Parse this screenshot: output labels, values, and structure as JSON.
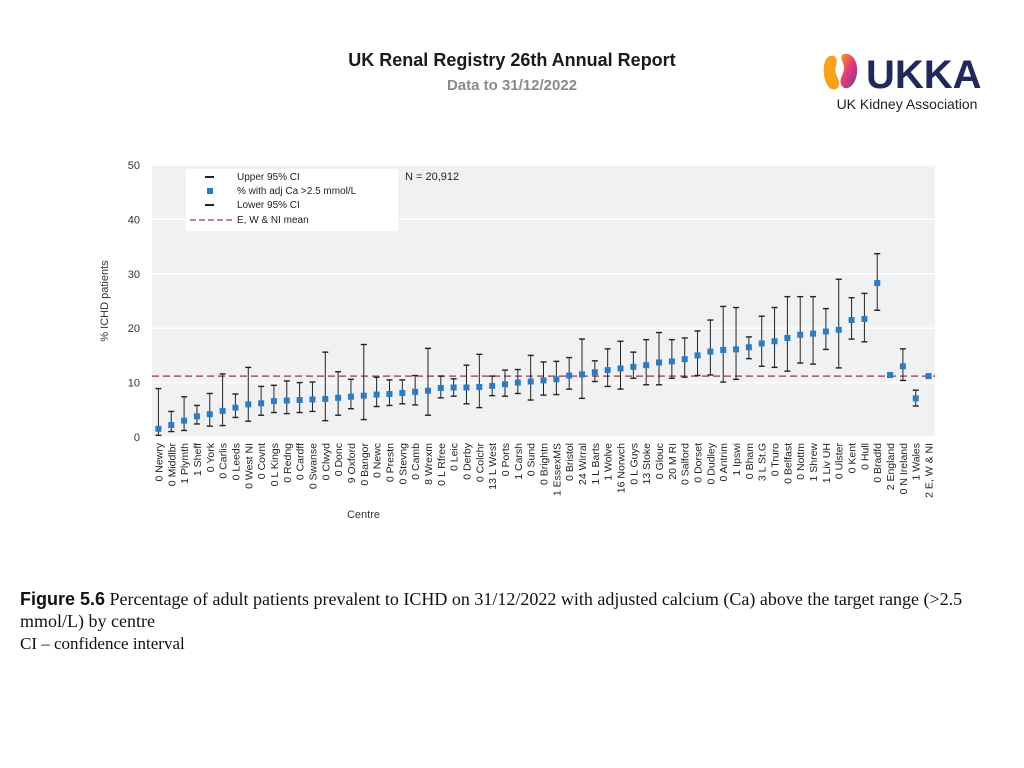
{
  "header": {
    "title": "UK Renal Registry 26th Annual Report",
    "subtitle": "Data to 31/12/2022"
  },
  "logo": {
    "wordmark": "UKKA",
    "tagline": "UK Kidney Association"
  },
  "colors": {
    "point": "#2f7bbf",
    "errorbar": "#222222",
    "mean_line": "#b0506a",
    "plot_bg": "#f0f1f3",
    "grid": "#ffffff"
  },
  "chart_data": {
    "type": "scatter",
    "title": "",
    "xlabel": "Centre",
    "ylabel": "% ICHD patients",
    "ylim": [
      0,
      50
    ],
    "yticks": [
      0,
      10,
      20,
      30,
      40,
      50
    ],
    "grid": true,
    "legend_position": "top-left",
    "annotation": "N = 20,912",
    "legend": [
      "Upper 95% CI",
      "% with adj Ca >2.5 mmol/L",
      "Lower 95% CI",
      "E, W & NI mean"
    ],
    "mean_value": 11.2,
    "categories": [
      "0 Newry",
      "0 Middlbr",
      "1 Plymth",
      "1 Sheff",
      "0 York",
      "0 Carlis",
      "0 Leeds",
      "0 West NI",
      "0 Covnt",
      "0 L Kings",
      "0 Redng",
      "0 Cardff",
      "0 Swanse",
      "0 Clwyd",
      "0 Donc",
      "9 Oxford",
      "0 Bangor",
      "0 Newc",
      "0 Prestn",
      "0 Stevng",
      "0 Camb",
      "8 Wrexm",
      "0 L Rfree",
      "0 Leic",
      "0 Derby",
      "0 Colchr",
      "13 L West",
      "0 Ports",
      "1 Carsh",
      "0 Sund",
      "0 Brightn",
      "1 EssexMS",
      "0 Bristol",
      "24 Wirral",
      "1 L Barts",
      "1 Wolve",
      "16 Norwch",
      "0 L Guys",
      "13 Stoke",
      "0 Glouc",
      "20 M RI",
      "0 Salford",
      "0 Dorset",
      "0 Dudley",
      "0 Antrim",
      "1 Ipswi",
      "0 Bham",
      "3 L St.G",
      "0 Truro",
      "0 Belfast",
      "0 Nottm",
      "1 Shrew",
      "1 Liv UH",
      "0 Ulster",
      "0 Kent",
      "0 Hull",
      "0 Bradfd",
      "2 England",
      "0 N Ireland",
      "1 Wales",
      "2 E, W & NI"
    ],
    "series": [
      {
        "name": "% with adj Ca >2.5 mmol/L",
        "values": [
          1.5,
          2.2,
          3.0,
          3.8,
          4.2,
          4.8,
          5.4,
          6.0,
          6.2,
          6.6,
          6.7,
          6.8,
          6.9,
          7.0,
          7.2,
          7.4,
          7.6,
          7.8,
          7.9,
          8.1,
          8.3,
          8.5,
          9.0,
          9.1,
          9.1,
          9.2,
          9.4,
          9.7,
          10.0,
          10.2,
          10.4,
          10.6,
          11.3,
          11.5,
          11.9,
          12.3,
          12.6,
          12.9,
          13.2,
          13.7,
          13.9,
          14.3,
          15.0,
          15.7,
          16.0,
          16.1,
          16.5,
          17.2,
          17.6,
          18.2,
          18.8,
          19.0,
          19.4,
          19.7,
          21.5,
          21.7,
          28.3,
          11.4,
          13.0,
          7.1,
          11.2
        ]
      },
      {
        "name": "Upper 95% CI",
        "values": [
          8.9,
          4.7,
          7.4,
          5.8,
          8.0,
          11.6,
          7.9,
          12.8,
          9.3,
          9.5,
          10.3,
          10.0,
          10.1,
          15.6,
          12.0,
          10.6,
          17.0,
          11.0,
          10.5,
          10.5,
          11.3,
          16.3,
          11.2,
          10.7,
          13.2,
          15.2,
          11.2,
          12.3,
          12.4,
          15.0,
          13.8,
          13.9,
          14.6,
          18.0,
          14.0,
          16.2,
          17.6,
          15.6,
          17.9,
          19.2,
          17.9,
          18.2,
          19.5,
          21.5,
          24.0,
          23.8,
          18.4,
          22.2,
          23.8,
          25.8,
          25.8,
          25.8,
          23.6,
          29.0,
          25.6,
          26.4,
          33.7,
          11.8,
          16.2,
          8.6,
          11.5
        ]
      },
      {
        "name": "Lower 95% CI",
        "values": [
          0.3,
          1.0,
          1.2,
          2.4,
          2.0,
          2.1,
          3.6,
          2.9,
          4.0,
          4.5,
          4.3,
          4.5,
          4.7,
          3.0,
          4.0,
          5.2,
          3.2,
          5.6,
          5.8,
          6.1,
          5.9,
          4.0,
          7.2,
          7.5,
          6.1,
          5.4,
          7.6,
          7.5,
          8.0,
          6.8,
          7.7,
          7.8,
          8.8,
          7.1,
          10.2,
          9.3,
          8.8,
          10.8,
          9.6,
          9.6,
          10.8,
          11.0,
          11.3,
          11.4,
          10.1,
          10.6,
          14.4,
          13.0,
          12.8,
          12.1,
          13.6,
          13.4,
          16.1,
          12.7,
          18.0,
          17.5,
          23.3,
          11.0,
          10.4,
          5.7,
          10.9
        ]
      }
    ]
  },
  "caption": {
    "figure_label": "Figure 5.6",
    "text": " Percentage of adult patients prevalent to ICHD on 31/12/2022 with adjusted calcium (Ca) above the target range (>2.5 mmol/L) by centre",
    "footnote": "CI – confidence interval"
  }
}
